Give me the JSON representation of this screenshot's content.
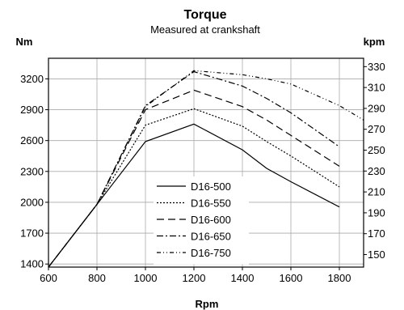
{
  "chart_data": {
    "type": "line",
    "title": "Torque",
    "subtitle": "Measured at crankshaft",
    "ylabel": "Nm",
    "y2label": "kpm",
    "xlabel": "Rpm",
    "x": [
      600,
      800,
      1000,
      1200,
      1400,
      1500,
      1600,
      1800,
      1900
    ],
    "xticks": [
      600,
      800,
      1000,
      1200,
      1400,
      1600,
      1800
    ],
    "xlim": [
      600,
      1900
    ],
    "yticks": [
      1400,
      1700,
      2000,
      2300,
      2600,
      2900,
      3200
    ],
    "ylim": [
      1370,
      3400
    ],
    "y2ticks": [
      150,
      170,
      190,
      210,
      230,
      250,
      270,
      290,
      310,
      330
    ],
    "y2lim": [
      138,
      338
    ],
    "grid": true,
    "legend_position": "center",
    "series": [
      {
        "name": "D16-500",
        "dash": "",
        "points": [
          [
            600,
            1370
          ],
          [
            800,
            1980
          ],
          [
            1000,
            2590
          ],
          [
            1200,
            2760
          ],
          [
            1400,
            2510
          ],
          [
            1500,
            2330
          ],
          [
            1600,
            2200
          ],
          [
            1800,
            1955
          ]
        ]
      },
      {
        "name": "D16-550",
        "dash": "2 2",
        "points": [
          [
            600,
            1370
          ],
          [
            800,
            1980
          ],
          [
            1000,
            2750
          ],
          [
            1200,
            2910
          ],
          [
            1400,
            2740
          ],
          [
            1500,
            2590
          ],
          [
            1600,
            2450
          ],
          [
            1800,
            2150
          ]
        ]
      },
      {
        "name": "D16-600",
        "dash": "9 5",
        "points": [
          [
            600,
            1370
          ],
          [
            800,
            1980
          ],
          [
            1000,
            2900
          ],
          [
            1200,
            3090
          ],
          [
            1400,
            2930
          ],
          [
            1500,
            2800
          ],
          [
            1600,
            2650
          ],
          [
            1800,
            2350
          ]
        ]
      },
      {
        "name": "D16-650",
        "dash": "8 3 2 3",
        "points": [
          [
            600,
            1370
          ],
          [
            800,
            1980
          ],
          [
            1000,
            2940
          ],
          [
            1200,
            3270
          ],
          [
            1400,
            3130
          ],
          [
            1500,
            3010
          ],
          [
            1600,
            2870
          ],
          [
            1800,
            2540
          ]
        ]
      },
      {
        "name": "D16-750",
        "dash": "5 3 1 3 1 3",
        "points": [
          [
            600,
            1370
          ],
          [
            800,
            1980
          ],
          [
            1000,
            2930
          ],
          [
            1200,
            3280
          ],
          [
            1400,
            3240
          ],
          [
            1500,
            3200
          ],
          [
            1600,
            3150
          ],
          [
            1800,
            2940
          ],
          [
            1900,
            2800
          ]
        ]
      }
    ]
  }
}
